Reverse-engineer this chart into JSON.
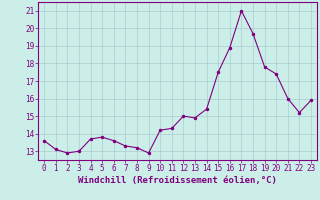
{
  "x": [
    0,
    1,
    2,
    3,
    4,
    5,
    6,
    7,
    8,
    9,
    10,
    11,
    12,
    13,
    14,
    15,
    16,
    17,
    18,
    19,
    20,
    21,
    22,
    23
  ],
  "y": [
    13.6,
    13.1,
    12.9,
    13.0,
    13.7,
    13.8,
    13.6,
    13.3,
    13.2,
    12.9,
    14.2,
    14.3,
    15.0,
    14.9,
    15.4,
    17.5,
    18.9,
    21.0,
    19.7,
    17.8,
    17.4,
    16.0,
    15.2,
    15.9
  ],
  "line_color": "#800080",
  "marker": ".",
  "marker_size": 3,
  "bg_color": "#cceee8",
  "grid_color": "#aacccc",
  "xlabel": "Windchill (Refroidissement éolien,°C)",
  "xlabel_color": "#800080",
  "tick_color": "#800080",
  "spine_color": "#800080",
  "ylim": [
    12.5,
    21.5
  ],
  "xlim": [
    -0.5,
    23.5
  ],
  "yticks": [
    13,
    14,
    15,
    16,
    17,
    18,
    19,
    20,
    21
  ],
  "xticks": [
    0,
    1,
    2,
    3,
    4,
    5,
    6,
    7,
    8,
    9,
    10,
    11,
    12,
    13,
    14,
    15,
    16,
    17,
    18,
    19,
    20,
    21,
    22,
    23
  ],
  "tick_fontsize": 5.5,
  "xlabel_fontsize": 6.5
}
